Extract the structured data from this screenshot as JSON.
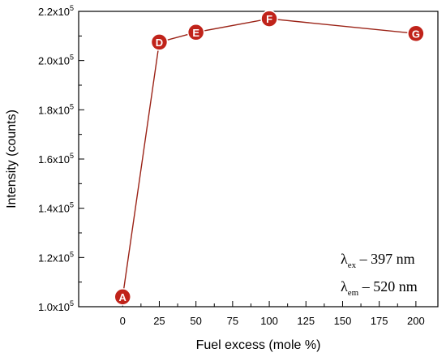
{
  "chart_data": {
    "type": "line",
    "title": "",
    "xlabel": "Fuel excess (mole %)",
    "ylabel": "Intensity (counts)",
    "xlim": [
      -30,
      215
    ],
    "ylim": [
      100000,
      220000
    ],
    "x_ticks": [
      0,
      25,
      50,
      75,
      100,
      125,
      150,
      175,
      200
    ],
    "y_ticks": [
      {
        "value": 100000,
        "mant": "1.0x10",
        "exp": "5"
      },
      {
        "value": 120000,
        "mant": "1.2x10",
        "exp": "5"
      },
      {
        "value": 140000,
        "mant": "1.4x10",
        "exp": "5"
      },
      {
        "value": 160000,
        "mant": "1.6x10",
        "exp": "5"
      },
      {
        "value": 180000,
        "mant": "1.8x10",
        "exp": "5"
      },
      {
        "value": 200000,
        "mant": "2.0x10",
        "exp": "5"
      },
      {
        "value": 220000,
        "mant": "2.2x10",
        "exp": "5"
      }
    ],
    "grid": false,
    "series": [
      {
        "color": "#c0231a",
        "points": [
          {
            "label": "A",
            "x": 0,
            "y": 104000
          },
          {
            "label": "D",
            "x": 25,
            "y": 207500
          },
          {
            "label": "E",
            "x": 50,
            "y": 211500
          },
          {
            "label": "F",
            "x": 100,
            "y": 217000
          },
          {
            "label": "G",
            "x": 200,
            "y": 211000
          }
        ]
      }
    ],
    "annotations": [
      {
        "symbol": "λ",
        "sub": "ex",
        "text": " – 397 nm"
      },
      {
        "symbol": "λ",
        "sub": "em",
        "text": " – 520 nm"
      }
    ]
  }
}
